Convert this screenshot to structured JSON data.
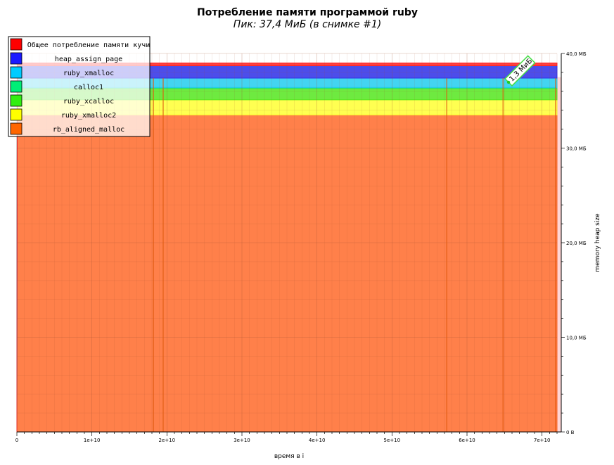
{
  "chart_data": {
    "type": "area",
    "title": "Потребление памяти программой ruby",
    "subtitle": "Пик: 37,4 МиБ (в снимке #1)",
    "xlabel": "время в i",
    "ylabel": "memory heap size",
    "xlim": [
      0,
      72000000000
    ],
    "ylim": [
      0,
      40
    ],
    "x_ticks": [
      {
        "value": 0,
        "label": "0"
      },
      {
        "value": 10000000000,
        "label": "1e+10"
      },
      {
        "value": 20000000000,
        "label": "2e+10"
      },
      {
        "value": 30000000000,
        "label": "3e+10"
      },
      {
        "value": 40000000000,
        "label": "4e+10"
      },
      {
        "value": 50000000000,
        "label": "5e+10"
      },
      {
        "value": 60000000000,
        "label": "6e+10"
      },
      {
        "value": 70000000000,
        "label": "7e+10"
      }
    ],
    "y_ticks": [
      {
        "value": 0,
        "label": "0 B"
      },
      {
        "value": 10,
        "label": "10,0 МБ"
      },
      {
        "value": 20,
        "label": "20,0 МБ"
      },
      {
        "value": 30,
        "label": "30,0 МБ"
      },
      {
        "value": 40,
        "label": "40,0 МБ"
      }
    ],
    "x": [
      0,
      50000000,
      72000000000
    ],
    "series": [
      {
        "name": "rb_aligned_malloc",
        "color": "#ff6a2a",
        "values": [
          0,
          33.5,
          33.5
        ]
      },
      {
        "name": "ruby_xmalloc2",
        "color": "#ffff33",
        "values": [
          0,
          1.6,
          1.6
        ]
      },
      {
        "name": "ruby_xcalloc",
        "color": "#55e61e",
        "values": [
          0,
          1.2,
          1.2
        ]
      },
      {
        "name": "calloc1",
        "color": "#22e07a",
        "values": [
          0,
          0.1,
          0.1
        ]
      },
      {
        "name": "ruby_xmalloc",
        "color": "#22ccee",
        "values": [
          0,
          1.0,
          1.0
        ]
      },
      {
        "name": "heap_assign_page",
        "color": "#2e2ee6",
        "values": [
          0,
          1.3,
          1.3
        ]
      },
      {
        "name": "Общее потребление памяти кучи",
        "color": "#ff2020",
        "values": [
          0,
          0.3,
          0.3
        ]
      }
    ],
    "legend": {
      "position": "top-left",
      "entries": [
        {
          "label": "Общее потребление памяти кучи",
          "color": "#ff0000"
        },
        {
          "label": "heap_assign_page",
          "color": "#1a1aff"
        },
        {
          "label": "ruby_xmalloc",
          "color": "#00ccff"
        },
        {
          "label": "calloc1",
          "color": "#00ee77"
        },
        {
          "label": "ruby_xcalloc",
          "color": "#33ee11"
        },
        {
          "label": "ruby_xmalloc2",
          "color": "#ffff00"
        },
        {
          "label": "rb_aligned_malloc",
          "color": "#ff6600"
        }
      ]
    },
    "annotations": [
      {
        "text": "1,3 МиБ",
        "series": "heap_assign_page",
        "x": 66000000000
      }
    ],
    "snapshot_lines_x": [
      18200000000,
      19500000000,
      57300000000,
      64800000000,
      71800000000
    ],
    "grid": true
  }
}
